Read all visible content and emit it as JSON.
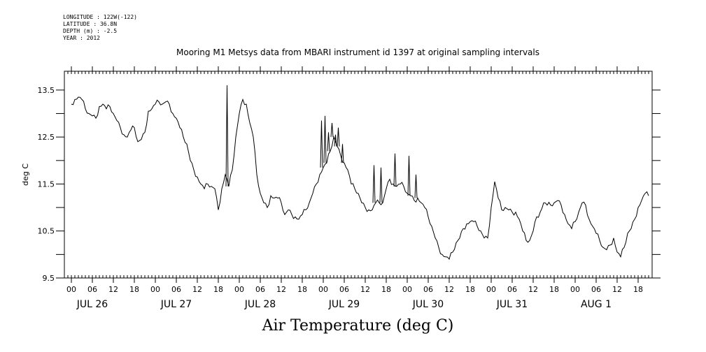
{
  "meta": {
    "longitude": "LONGITUDE : 122W(-122)",
    "latitude": "LATITUDE : 36.8N",
    "depth": "DEPTH (m) : -2.5",
    "year": "YEAR : 2012"
  },
  "chart_data": {
    "type": "line",
    "title": "Mooring M1 Metsys data from MBARI instrument id 1397 at original sampling intervals",
    "xlabel": "Air Temperature (deg C)",
    "ylabel": "deg C",
    "ylim": [
      9.5,
      13.9
    ],
    "y_ticks": [
      9.5,
      10.5,
      11.5,
      12.5,
      13.5
    ],
    "y_tick_labels": [
      "9.5",
      "10.5",
      "11.5",
      "12.5",
      "13.5"
    ],
    "xlim_hours": [
      -2,
      166
    ],
    "hour_labels": [
      "00",
      "06",
      "12",
      "18",
      "00",
      "06",
      "12",
      "18",
      "00",
      "06",
      "12",
      "18",
      "00",
      "06",
      "12",
      "18",
      "00",
      "06",
      "12",
      "18",
      "00",
      "06",
      "12",
      "18",
      "00",
      "06",
      "12",
      "18"
    ],
    "day_labels": [
      "JUL 26",
      "JUL 27",
      "JUL 28",
      "JUL 29",
      "JUL 30",
      "JUL 31",
      "AUG  1"
    ],
    "grid": false,
    "color": "#000000",
    "series": [
      {
        "x": [
          0,
          1,
          2,
          3,
          4,
          5,
          6,
          7,
          8,
          9,
          10,
          11,
          12,
          13,
          14,
          15,
          16,
          17,
          18,
          19,
          20,
          21,
          22,
          23,
          24,
          25,
          26,
          27,
          28,
          29,
          30,
          31,
          32,
          33,
          34,
          35,
          36,
          37,
          38,
          39,
          40,
          41,
          42,
          43,
          44,
          45,
          46,
          47,
          48,
          49,
          50,
          51,
          52,
          53,
          54,
          55,
          56,
          57,
          58,
          59,
          60,
          61,
          62,
          63,
          64,
          65,
          66,
          67,
          68,
          69,
          70,
          71,
          72,
          73,
          74,
          75,
          76,
          77,
          78,
          79,
          80,
          81,
          82,
          83,
          84,
          85,
          86,
          87,
          88,
          89,
          90,
          91,
          92,
          93,
          94,
          95,
          96,
          97,
          98,
          99,
          100,
          101,
          102,
          103,
          104,
          105,
          106,
          107,
          108,
          109,
          110,
          111,
          112,
          113,
          114,
          115,
          116,
          117,
          118,
          119,
          120,
          121,
          122,
          123,
          124,
          125,
          126,
          127,
          128,
          129,
          130,
          131,
          132,
          133,
          134,
          135,
          136,
          137,
          138,
          139,
          140,
          141,
          142,
          143,
          144,
          145,
          146,
          147,
          148,
          149,
          150,
          151,
          152,
          153,
          154,
          155,
          156,
          157,
          158,
          159,
          160,
          161,
          162,
          163,
          164,
          165
        ],
        "values": [
          13.2,
          13.3,
          13.35,
          13.3,
          13.1,
          13.0,
          12.95,
          12.9,
          13.15,
          13.2,
          13.1,
          13.15,
          13.0,
          12.85,
          12.7,
          12.55,
          12.5,
          12.65,
          12.7,
          12.4,
          12.45,
          12.6,
          13.05,
          13.1,
          13.2,
          13.25,
          13.2,
          13.25,
          13.2,
          13.0,
          12.9,
          12.7,
          12.5,
          12.35,
          12.0,
          11.8,
          11.65,
          11.5,
          11.4,
          11.5,
          11.45,
          11.4,
          10.95,
          11.4,
          11.7,
          11.45,
          11.8,
          12.5,
          13.0,
          13.3,
          13.2,
          12.8,
          12.5,
          11.7,
          11.3,
          11.1,
          11.0,
          11.25,
          11.2,
          11.2,
          11.1,
          10.85,
          10.95,
          10.85,
          10.8,
          10.75,
          10.85,
          10.95,
          11.1,
          11.3,
          11.5,
          11.7,
          11.85,
          11.95,
          12.2,
          12.5,
          12.3,
          12.1,
          11.95,
          11.8,
          11.5,
          11.4,
          11.3,
          11.1,
          11.0,
          10.95,
          10.95,
          11.1,
          11.1,
          11.1,
          11.4,
          11.6,
          11.5,
          11.45,
          11.5,
          11.45,
          11.3,
          11.25,
          11.15,
          11.2,
          11.1,
          11.0,
          10.8,
          10.6,
          10.35,
          10.15,
          10.0,
          9.95,
          9.9,
          10.05,
          10.25,
          10.35,
          10.55,
          10.65,
          10.7,
          10.7,
          10.6,
          10.5,
          10.35,
          10.35,
          11.0,
          11.55,
          11.2,
          10.95,
          11.0,
          10.95,
          10.9,
          10.9,
          10.75,
          10.5,
          10.3,
          10.3,
          10.5,
          10.8,
          10.9,
          11.1,
          11.05,
          11.05,
          11.1,
          11.15,
          11.05,
          10.85,
          10.65,
          10.55,
          10.7,
          10.9,
          11.1,
          11.05,
          10.75,
          10.6,
          10.45,
          10.3,
          10.15,
          10.1,
          10.2,
          10.35,
          10.05,
          9.95,
          10.15,
          10.45,
          10.55,
          10.75,
          11.0,
          11.15,
          11.3,
          11.25
        ]
      }
    ],
    "spikes": [
      {
        "x": 44.5,
        "y": 13.6
      },
      {
        "x": 71.5,
        "y": 12.85
      },
      {
        "x": 72.5,
        "y": 12.95
      },
      {
        "x": 73.5,
        "y": 12.6
      },
      {
        "x": 74.5,
        "y": 12.8
      },
      {
        "x": 75.5,
        "y": 12.55
      },
      {
        "x": 76.3,
        "y": 12.7
      },
      {
        "x": 77.5,
        "y": 12.35
      },
      {
        "x": 86.5,
        "y": 11.9
      },
      {
        "x": 88.5,
        "y": 11.85
      },
      {
        "x": 92.5,
        "y": 12.15
      },
      {
        "x": 96.5,
        "y": 12.1
      },
      {
        "x": 98.5,
        "y": 11.7
      }
    ]
  }
}
